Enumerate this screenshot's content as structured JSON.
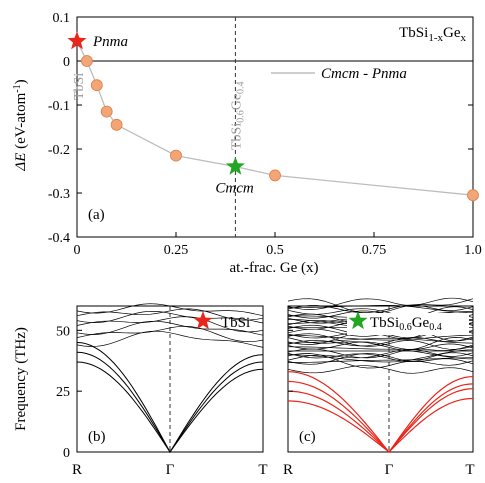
{
  "chart_data": [
    {
      "type": "line",
      "title": "TbSi1-xGex",
      "title_main": "TbSi",
      "title_sub1": "1-x",
      "title_mid": "Ge",
      "title_sub2": "x",
      "xlabel": "at.-frac. Ge (x)",
      "ylabel": "ΔE (eV-atom⁻¹)",
      "ylabel_delta": "ΔE",
      "ylabel_unit": " (eV-atom",
      "ylabel_exp": "-1",
      "ylabel_close": ")",
      "panel_label": "(a)",
      "xlim": [
        0,
        1.0
      ],
      "ylim": [
        -0.4,
        0.1
      ],
      "x_ticks": [
        "0",
        "0.25",
        "0.5",
        "0.75",
        "1.0"
      ],
      "x_tick_values": [
        0,
        0.25,
        0.5,
        0.75,
        1.0
      ],
      "y_ticks": [
        "0.1",
        "0",
        "-0.1",
        "-0.2",
        "-0.3",
        "-0.4"
      ],
      "y_tick_values": [
        0.1,
        0,
        -0.1,
        -0.2,
        -0.3,
        -0.4
      ],
      "legend": "Cmcm - Pnma",
      "legend_color": "#bdbdbd",
      "series": [
        {
          "name": "Cmcm - Pnma",
          "x": [
            0.0,
            0.025,
            0.05,
            0.075,
            0.1,
            0.25,
            0.4,
            0.5,
            1.0
          ],
          "y": [
            0.045,
            0.0,
            -0.055,
            -0.115,
            -0.145,
            -0.215,
            -0.24,
            -0.26,
            -0.305
          ]
        }
      ],
      "markers": [
        {
          "label": "Pnma",
          "x": 0.0,
          "y": 0.045,
          "color": "#e8261b"
        },
        {
          "label": "Cmcm",
          "x": 0.4,
          "y": -0.24,
          "color": "#22a622"
        }
      ],
      "vertical_lines": [
        {
          "x": 0.0,
          "label": "TbSi"
        },
        {
          "x": 0.4,
          "label": "TbSi0.6Ge0.4",
          "label_main": "TbSi",
          "label_sub1": "0.6",
          "label_mid": "Ge",
          "label_sub2": "0.4"
        }
      ],
      "point_color": "#f2a677",
      "grid": false
    },
    {
      "type": "line",
      "title": "TbSi",
      "panel_label": "(b)",
      "ylabel": "Frequency (THz)",
      "ylim": [
        0,
        60
      ],
      "y_ticks": [
        "0",
        "25",
        "50"
      ],
      "y_tick_values": [
        0,
        25,
        50
      ],
      "x_ticks": [
        "R",
        "Γ",
        "T"
      ],
      "star_color": "#e8261b",
      "band_color": "#000000"
    },
    {
      "type": "line",
      "title": "TbSi0.6Ge0.4",
      "title_main": "TbSi",
      "title_sub1": "0.6",
      "title_mid": "Ge",
      "title_sub2": "0.4",
      "panel_label": "(c)",
      "ylim": [
        0,
        60
      ],
      "x_ticks": [
        "R",
        "Γ",
        "T"
      ],
      "star_color": "#22a622",
      "band_color": "#000000",
      "acoustic_color": "#e8261b"
    }
  ]
}
